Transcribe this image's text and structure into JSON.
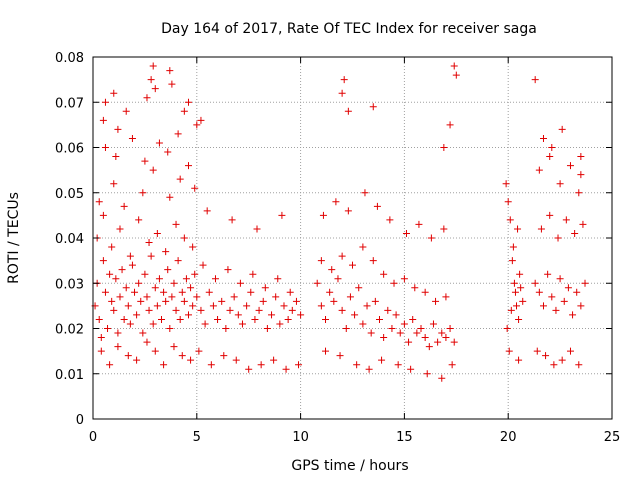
{
  "chart_data": {
    "type": "scatter",
    "title": "Day 164 of 2017, Rate Of TEC Index for receiver saga",
    "xlabel": "GPS time / hours",
    "ylabel": "ROTI / TECUs",
    "xlim": [
      0,
      25
    ],
    "ylim": [
      0,
      0.08
    ],
    "x_ticks": [
      "0",
      "5",
      "10",
      "15",
      "20",
      "25"
    ],
    "y_ticks": [
      "0",
      "0.01",
      "0.02",
      "0.03",
      "0.04",
      "0.05",
      "0.06",
      "0.07",
      "0.08"
    ],
    "grid": true,
    "legend": "none",
    "marker": "plus",
    "color": "#e00000",
    "series": [
      {
        "values_x": [
          0.1,
          0.2,
          0.3,
          0.4,
          0.5,
          0.6,
          0.7,
          0.8,
          0.9,
          1.0,
          1.1,
          1.2,
          1.3,
          1.4,
          1.5,
          1.6,
          1.7,
          1.8,
          1.9,
          2.0,
          2.1,
          2.2,
          2.3,
          2.4,
          2.5,
          2.6,
          2.7,
          2.8,
          2.9,
          3.0,
          3.1,
          3.2,
          3.3,
          3.4,
          3.5,
          3.6,
          3.7,
          3.8,
          3.9,
          4.0,
          4.1,
          4.2,
          4.3,
          4.4,
          4.5,
          4.6,
          4.7,
          4.8,
          4.9,
          5.0,
          5.2,
          5.4,
          5.6,
          5.8,
          6.0,
          6.2,
          6.4,
          6.6,
          6.8,
          7.0,
          7.2,
          7.4,
          7.6,
          7.8,
          8.0,
          8.2,
          8.4,
          8.6,
          8.8,
          9.0,
          9.2,
          9.4,
          9.6,
          9.8,
          10.0,
          0.2,
          0.5,
          0.9,
          1.3,
          1.8,
          2.2,
          2.7,
          3.1,
          3.5,
          4.0,
          4.4,
          4.8,
          5.3,
          5.9,
          6.5,
          7.1,
          7.7,
          8.3,
          8.9,
          9.5,
          0.4,
          0.8,
          1.2,
          1.7,
          2.1,
          2.6,
          3.0,
          3.4,
          3.9,
          4.3,
          4.7,
          5.1,
          5.7,
          6.3,
          6.9,
          7.5,
          8.1,
          8.7,
          9.3,
          9.9,
          0.3,
          1.0,
          1.5,
          2.4,
          2.9,
          3.7,
          4.2,
          4.9,
          5.5,
          6.7,
          7.9,
          9.1,
          0.6,
          1.1,
          1.9,
          2.5,
          3.2,
          3.6,
          4.1,
          4.6,
          0.5,
          0.6,
          1.0,
          1.2,
          1.6,
          2.6,
          2.8,
          2.9,
          3.0,
          3.7,
          3.8,
          4.4,
          4.6,
          5.0,
          5.2,
          10.8,
          11.0,
          11.2,
          11.4,
          11.6,
          11.8,
          12.0,
          12.2,
          12.4,
          12.6,
          12.8,
          13.0,
          13.2,
          13.4,
          13.6,
          13.8,
          14.0,
          14.2,
          14.4,
          14.6,
          14.8,
          15.0,
          15.2,
          15.4,
          15.6,
          15.8,
          16.0,
          16.2,
          16.4,
          16.6,
          16.8,
          17.0,
          17.2,
          17.4,
          11.0,
          11.5,
          12.0,
          12.5,
          13.0,
          13.5,
          14.0,
          14.5,
          15.0,
          15.5,
          16.0,
          16.5,
          17.0,
          11.2,
          11.9,
          12.7,
          13.3,
          13.9,
          14.7,
          15.3,
          16.1,
          16.8,
          17.3,
          11.1,
          11.7,
          12.3,
          13.1,
          13.7,
          14.3,
          15.1,
          15.7,
          16.3,
          16.9,
          12.0,
          12.1,
          12.3,
          13.5,
          16.9,
          17.2,
          17.4,
          17.5,
          19.9,
          20.0,
          20.1,
          20.2,
          20.3,
          20.4,
          20.5,
          20.6,
          20.7,
          19.95,
          20.15,
          20.35,
          20.55,
          20.25,
          20.45,
          20.05,
          21.3,
          21.5,
          21.7,
          21.9,
          22.1,
          22.3,
          22.5,
          22.7,
          22.9,
          23.1,
          23.3,
          23.5,
          23.7,
          21.6,
          22.0,
          22.4,
          22.8,
          23.2,
          23.6,
          21.4,
          21.8,
          22.2,
          22.6,
          23.0,
          23.4,
          21.5,
          22.0,
          22.5,
          23.0,
          23.5,
          21.7,
          22.1,
          22.6,
          23.4,
          23.5,
          20.5,
          21.3
        ],
        "values_y": [
          0.025,
          0.03,
          0.022,
          0.018,
          0.035,
          0.028,
          0.02,
          0.032,
          0.026,
          0.024,
          0.031,
          0.019,
          0.027,
          0.033,
          0.022,
          0.029,
          0.025,
          0.021,
          0.034,
          0.028,
          0.023,
          0.03,
          0.026,
          0.019,
          0.032,
          0.027,
          0.024,
          0.036,
          0.021,
          0.029,
          0.025,
          0.031,
          0.022,
          0.028,
          0.026,
          0.033,
          0.02,
          0.027,
          0.03,
          0.024,
          0.035,
          0.022,
          0.028,
          0.026,
          0.031,
          0.023,
          0.029,
          0.025,
          0.032,
          0.027,
          0.024,
          0.021,
          0.028,
          0.025,
          0.022,
          0.026,
          0.02,
          0.024,
          0.027,
          0.023,
          0.021,
          0.025,
          0.028,
          0.022,
          0.024,
          0.026,
          0.02,
          0.023,
          0.027,
          0.021,
          0.025,
          0.022,
          0.024,
          0.026,
          0.023,
          0.04,
          0.045,
          0.038,
          0.042,
          0.036,
          0.044,
          0.039,
          0.041,
          0.037,
          0.043,
          0.04,
          0.038,
          0.034,
          0.031,
          0.033,
          0.03,
          0.032,
          0.029,
          0.031,
          0.028,
          0.015,
          0.012,
          0.016,
          0.014,
          0.013,
          0.017,
          0.015,
          0.012,
          0.016,
          0.014,
          0.013,
          0.015,
          0.012,
          0.014,
          0.013,
          0.011,
          0.012,
          0.013,
          0.011,
          0.012,
          0.048,
          0.052,
          0.047,
          0.05,
          0.055,
          0.049,
          0.053,
          0.051,
          0.046,
          0.044,
          0.042,
          0.045,
          0.06,
          0.058,
          0.062,
          0.057,
          0.061,
          0.059,
          0.063,
          0.056,
          0.066,
          0.07,
          0.072,
          0.064,
          0.068,
          0.071,
          0.075,
          0.078,
          0.073,
          0.077,
          0.074,
          0.068,
          0.07,
          0.065,
          0.066,
          0.03,
          0.025,
          0.022,
          0.028,
          0.026,
          0.031,
          0.024,
          0.02,
          0.027,
          0.023,
          0.029,
          0.021,
          0.025,
          0.019,
          0.026,
          0.022,
          0.018,
          0.024,
          0.02,
          0.023,
          0.019,
          0.021,
          0.017,
          0.022,
          0.019,
          0.02,
          0.018,
          0.016,
          0.021,
          0.017,
          0.019,
          0.018,
          0.02,
          0.017,
          0.035,
          0.033,
          0.036,
          0.034,
          0.038,
          0.035,
          0.032,
          0.03,
          0.031,
          0.029,
          0.028,
          0.026,
          0.027,
          0.015,
          0.014,
          0.012,
          0.011,
          0.013,
          0.012,
          0.011,
          0.01,
          0.009,
          0.012,
          0.045,
          0.048,
          0.046,
          0.05,
          0.047,
          0.044,
          0.041,
          0.043,
          0.04,
          0.042,
          0.072,
          0.075,
          0.068,
          0.069,
          0.06,
          0.065,
          0.078,
          0.076,
          0.052,
          0.048,
          0.044,
          0.035,
          0.03,
          0.025,
          0.022,
          0.029,
          0.026,
          0.02,
          0.024,
          0.028,
          0.032,
          0.038,
          0.042,
          0.015,
          0.03,
          0.028,
          0.025,
          0.032,
          0.027,
          0.024,
          0.031,
          0.026,
          0.029,
          0.023,
          0.028,
          0.025,
          0.03,
          0.042,
          0.045,
          0.04,
          0.044,
          0.041,
          0.043,
          0.015,
          0.014,
          0.012,
          0.013,
          0.015,
          0.012,
          0.055,
          0.058,
          0.052,
          0.056,
          0.054,
          0.062,
          0.06,
          0.064,
          0.05,
          0.058,
          0.013,
          0.075
        ]
      }
    ]
  }
}
